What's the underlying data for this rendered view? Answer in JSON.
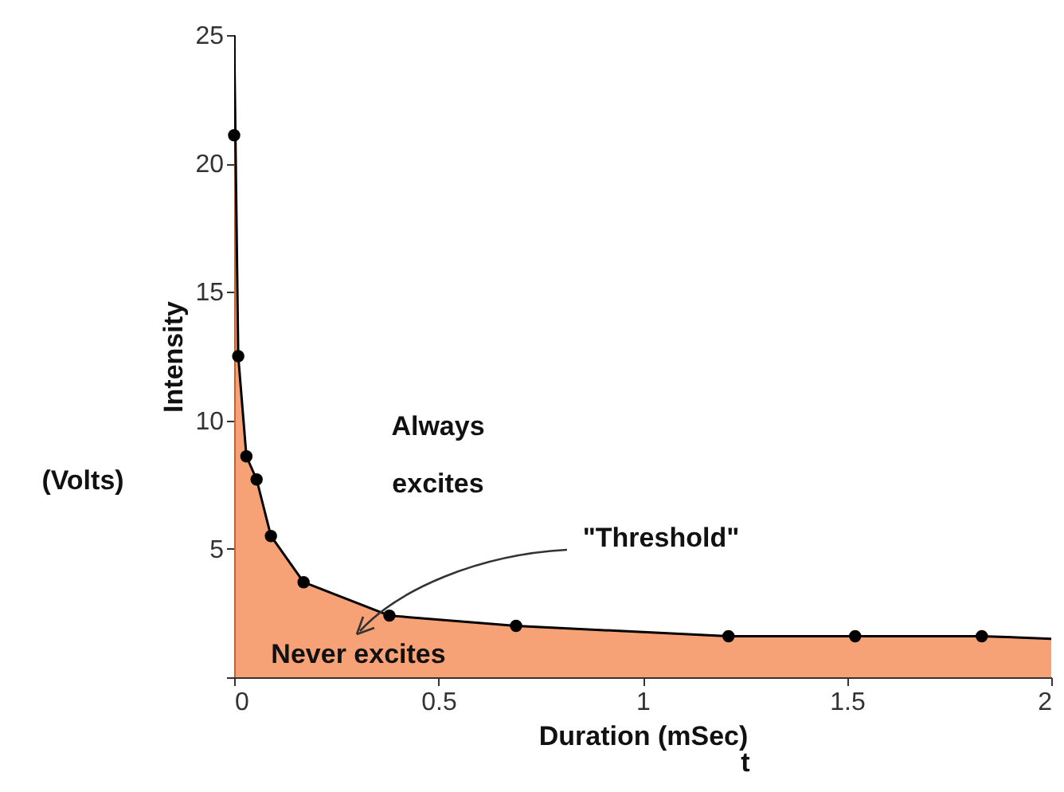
{
  "chart_data": {
    "type": "area",
    "xlabel": "Duration (mSec)",
    "ylabel": "Intensity",
    "xlim": [
      0,
      2
    ],
    "ylim": [
      0,
      25
    ],
    "xticks": [
      0,
      0.5,
      1,
      1.5,
      2
    ],
    "yticks": [
      {
        "value": 0,
        "label": null
      },
      5,
      10,
      15,
      20,
      25
    ],
    "grid": false,
    "series": [
      {
        "color": "#f47a3c",
        "x": [
          0,
          0.01,
          0.03,
          0.055,
          0.09,
          0.17,
          0.38,
          0.69,
          1.21,
          1.52,
          1.83,
          2
        ],
        "values": [
          25,
          12.5,
          8.6,
          7.7,
          5.5,
          3.7,
          2.4,
          2.0,
          1.6,
          1.6,
          1.6,
          1.5
        ]
      },
      {
        "type": "scatter",
        "color": "#000000",
        "marker": "circle",
        "x": [
          0,
          0.01,
          0.03,
          0.055,
          0.09,
          0.17,
          0.38,
          0.69,
          1.21,
          1.52,
          1.83
        ],
        "values": [
          21.1,
          12.5,
          8.6,
          7.7,
          5.5,
          3.7,
          2.4,
          2.0,
          1.6,
          1.6,
          1.6
        ]
      }
    ],
    "annotations": [
      "Always",
      "excites",
      "\"Threshold\"",
      "Never excites",
      "(Volts)",
      "t"
    ]
  }
}
